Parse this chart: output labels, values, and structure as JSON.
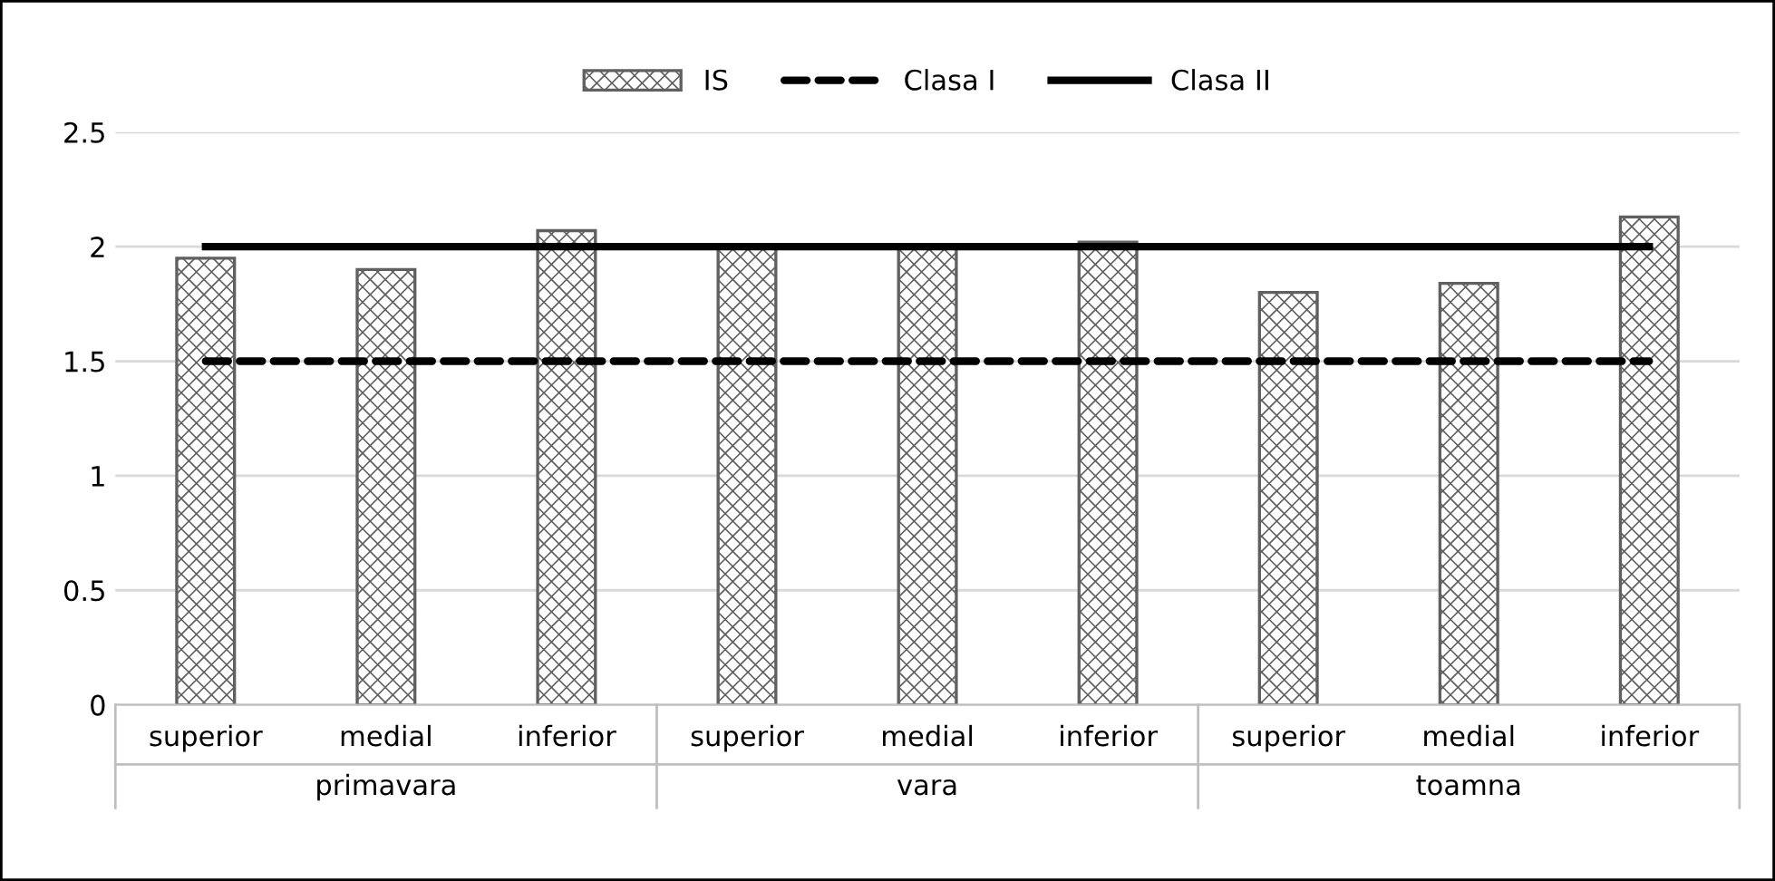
{
  "chart_data": {
    "type": "bar",
    "categories": [
      "superior",
      "medial",
      "inferior",
      "superior",
      "medial",
      "inferior",
      "superior",
      "medial",
      "inferior"
    ],
    "series": [
      {
        "name": "IS",
        "type": "bar",
        "color": "#606060",
        "values": [
          1.95,
          1.9,
          2.07,
          2.0,
          2.0,
          2.02,
          1.8,
          1.84,
          2.13
        ]
      },
      {
        "name": "Clasa I",
        "type": "line",
        "color": "#000000",
        "line_style": "dashed",
        "values": [
          1.5,
          1.5,
          1.5,
          1.5,
          1.5,
          1.5,
          1.5,
          1.5,
          1.5
        ]
      },
      {
        "name": "Clasa II",
        "type": "line",
        "color": "#000000",
        "line_style": "solid",
        "values": [
          2,
          2,
          2,
          2,
          2,
          2,
          2,
          2,
          2
        ]
      }
    ],
    "annotations": [
      "primavara",
      "vara",
      "toamna"
    ],
    "ylim": [
      0,
      2.5
    ],
    "yticks": [
      0,
      0.5,
      1,
      1.5,
      2,
      2.5
    ],
    "grid": "y",
    "legend": "top"
  }
}
